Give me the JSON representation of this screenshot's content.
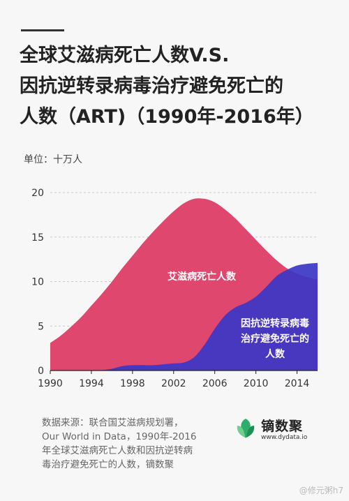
{
  "title_lines": [
    "全球艾滋病死亡人数V.S.",
    "因抗逆转录病毒治疗避免死亡的",
    "人数（ART)（1990年-2016年）"
  ],
  "unit_label": "单位：十万人",
  "source_lines": [
    "数据来源：联合国艾滋病规划署，",
    "Our World in Data，1990年-2016",
    "年全球艾滋病死亡人数和因抗逆转病",
    "毒治疗避免死亡的人数，镝数聚"
  ],
  "brand": {
    "name": "镝数聚",
    "url": "www.dydata.io",
    "icon": "leaf-logo-icon"
  },
  "watermark": "@修元粥h7",
  "colors": {
    "deaths": "#e0476f",
    "averted": "#3b36c6",
    "background": "#f7f7f7"
  },
  "chart_data": {
    "type": "area",
    "title": "",
    "xlabel": "",
    "ylabel": "单位：十万人",
    "x_ticks": [
      "1990",
      "1994",
      "1998",
      "2002",
      "2006",
      "2010",
      "2014"
    ],
    "y_ticks": [
      "0",
      "5",
      "10",
      "15",
      "20"
    ],
    "xlim": [
      1990,
      2016
    ],
    "ylim": [
      0,
      20
    ],
    "grid": "horizontal dashed",
    "x": [
      1990,
      1991,
      1992,
      1993,
      1994,
      1995,
      1996,
      1997,
      1998,
      1999,
      2000,
      2001,
      2002,
      2003,
      2004,
      2005,
      2006,
      2007,
      2008,
      2009,
      2010,
      2011,
      2012,
      2013,
      2014,
      2015,
      2016
    ],
    "series": [
      {
        "name": "艾滋病死亡人数",
        "label_lines": [
          "艾滋病死亡人数"
        ],
        "color": "#e0476f",
        "values": [
          3.1,
          3.9,
          4.9,
          6.0,
          7.3,
          8.6,
          10.0,
          11.5,
          12.9,
          14.3,
          15.6,
          16.8,
          17.9,
          18.8,
          19.3,
          19.3,
          18.9,
          18.1,
          17.1,
          15.9,
          14.7,
          13.5,
          12.4,
          11.5,
          10.9,
          10.5,
          10.2
        ]
      },
      {
        "name": "因抗逆转录病毒治疗避免死亡的人数",
        "label_lines": [
          "因抗逆转录病毒",
          "治疗避免死亡的",
          "人数"
        ],
        "color": "#3b36c6",
        "values": [
          0,
          0,
          0,
          0,
          0,
          0.05,
          0.2,
          0.5,
          0.6,
          0.6,
          0.6,
          0.7,
          0.8,
          0.9,
          1.5,
          2.9,
          4.7,
          6.2,
          7.1,
          7.6,
          8.3,
          9.4,
          10.6,
          11.3,
          11.8,
          12.0,
          12.1
        ]
      }
    ]
  }
}
